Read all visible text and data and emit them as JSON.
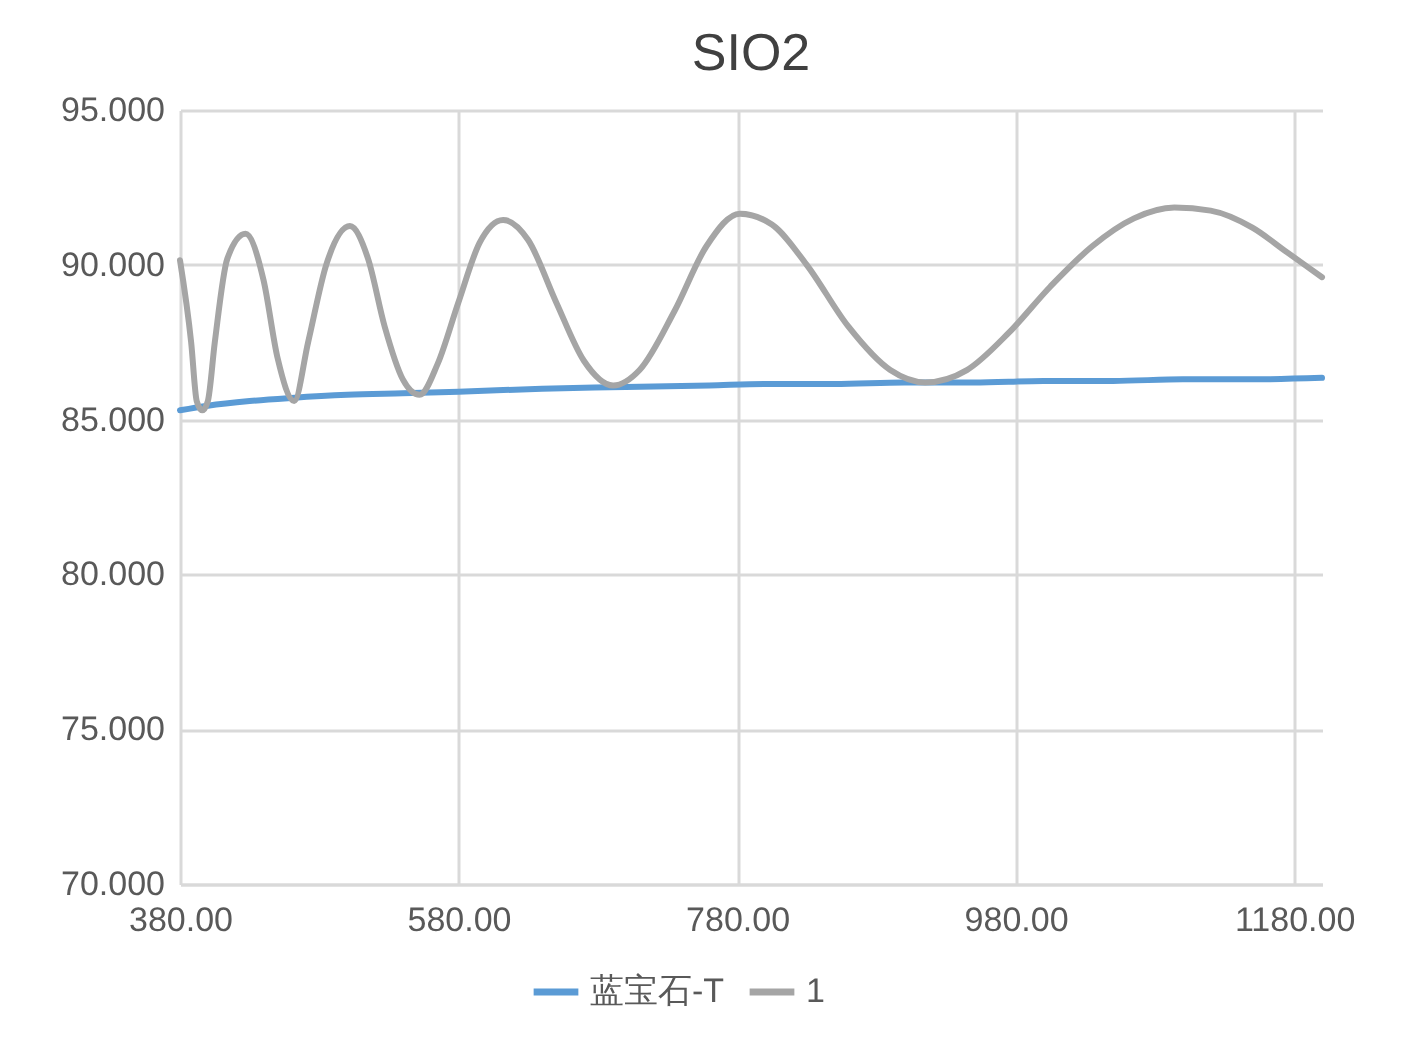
{
  "chart_data": {
    "type": "line",
    "title": "SIO2",
    "x": [
      380,
      388,
      392,
      396,
      400,
      405,
      414,
      427,
      440,
      450,
      462,
      472,
      485,
      502,
      515,
      527,
      540,
      552,
      565,
      580,
      595,
      612,
      630,
      650,
      670,
      691,
      710,
      735,
      758,
      782,
      805,
      830,
      860,
      890,
      915,
      945,
      975,
      1005,
      1035,
      1065,
      1094,
      1120,
      1150,
      1175,
      1200
    ],
    "series": [
      {
        "name": "蓝宝石-T",
        "color": "#5b9bd5",
        "x": [
          380,
          400,
          430,
          460,
          500,
          540,
          580,
          640,
          700,
          760,
          800,
          850,
          900,
          950,
          1000,
          1050,
          1100,
          1150,
          1200
        ],
        "values": [
          85.3,
          85.45,
          85.6,
          85.7,
          85.8,
          85.85,
          85.9,
          86.0,
          86.05,
          86.1,
          86.15,
          86.15,
          86.2,
          86.2,
          86.25,
          86.25,
          86.3,
          86.3,
          86.35
        ]
      },
      {
        "name": "1",
        "color": "#a5a5a5",
        "values": [
          90.15,
          87.5,
          85.6,
          85.3,
          85.6,
          87.5,
          90.2,
          91.0,
          89.5,
          87.0,
          85.6,
          87.5,
          90.0,
          91.25,
          90.2,
          88.0,
          86.3,
          85.8,
          86.8,
          88.8,
          90.7,
          91.45,
          90.8,
          88.8,
          86.9,
          86.1,
          86.6,
          88.5,
          90.6,
          91.65,
          91.3,
          90.0,
          88.0,
          86.6,
          86.2,
          86.6,
          87.8,
          89.3,
          90.6,
          91.5,
          91.85,
          91.75,
          91.2,
          90.4,
          89.6
        ]
      }
    ],
    "xlim": [
      380,
      1200
    ],
    "xticks": [
      {
        "value": 380,
        "label": "380.00"
      },
      {
        "value": 580,
        "label": "580.00"
      },
      {
        "value": 780,
        "label": "780.00"
      },
      {
        "value": 980,
        "label": "980.00"
      },
      {
        "value": 1180,
        "label": "1180.00"
      }
    ],
    "ylim": [
      70,
      95
    ],
    "yticks": [
      {
        "value": 70,
        "label": "70.000"
      },
      {
        "value": 75,
        "label": "75.000"
      },
      {
        "value": 80,
        "label": "80.000"
      },
      {
        "value": 85,
        "label": "85.000"
      },
      {
        "value": 90,
        "label": "90.000"
      },
      {
        "value": 95,
        "label": "95.000"
      }
    ],
    "grid": true,
    "legend": "bottom",
    "marker": "none",
    "line_style": "solid"
  }
}
